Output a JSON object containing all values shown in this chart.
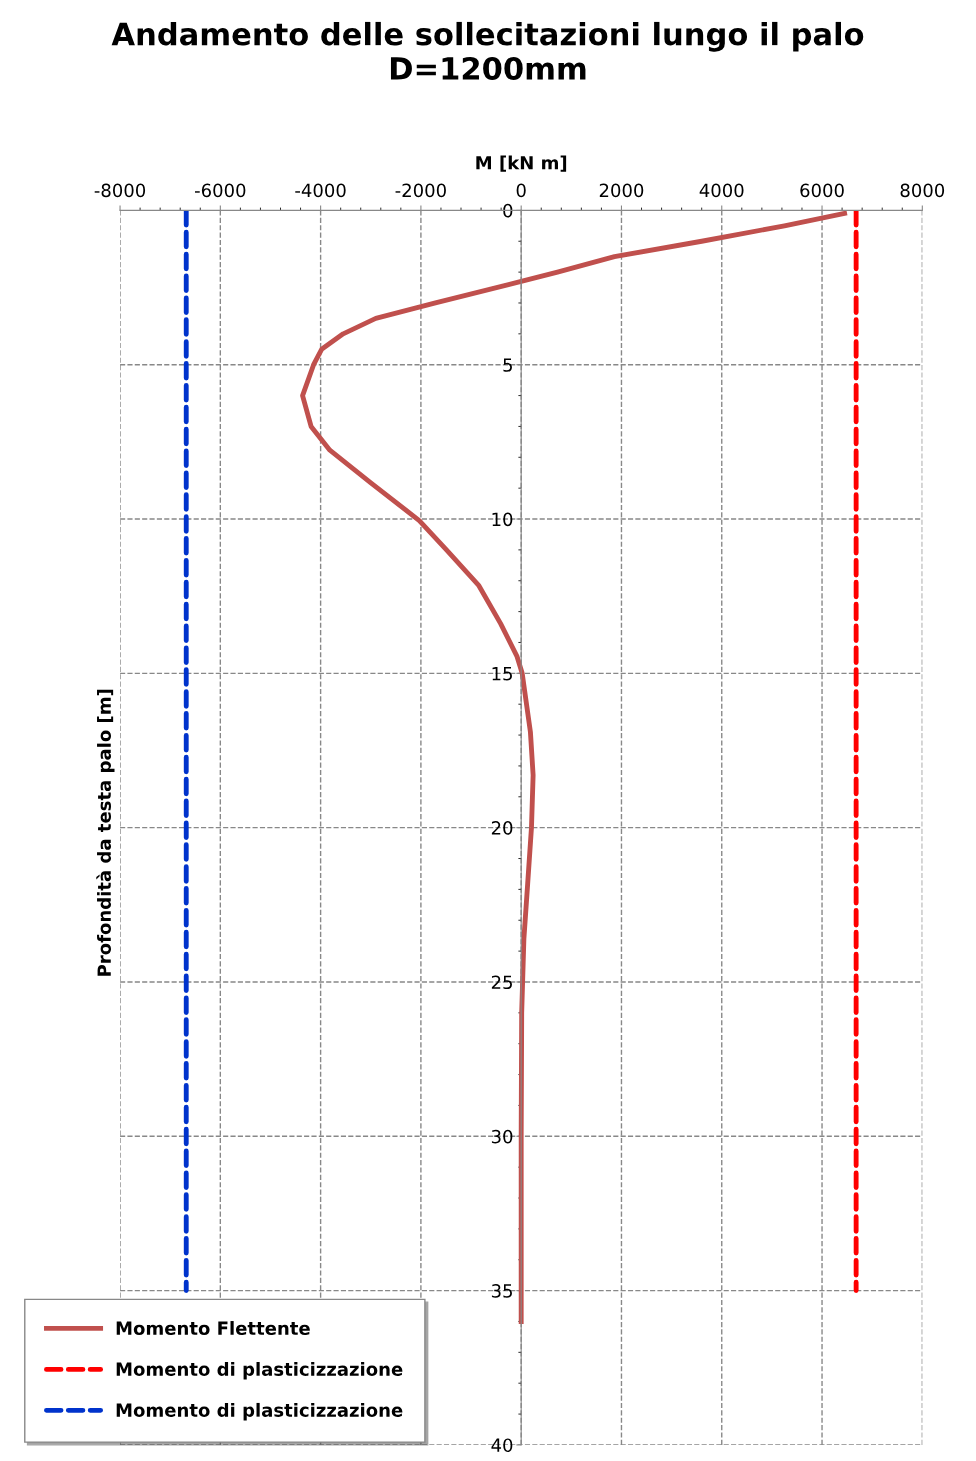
{
  "chart_data": {
    "type": "line",
    "title": "Andamento delle sollecitazioni lungo il palo\nD=1200mm",
    "xlabel": "M [kN m]",
    "ylabel": "Profondità da testa palo [m]",
    "xlim": [
      -8000,
      8000
    ],
    "xticks": [
      -8000,
      -6000,
      -4000,
      -2000,
      0,
      2000,
      4000,
      6000,
      8000
    ],
    "ylim": [
      40,
      0
    ],
    "yticks": [
      0,
      5,
      10,
      15,
      20,
      25,
      30,
      35,
      40
    ],
    "grid": true,
    "legend": "bottom left",
    "line_style": "solid",
    "series": [
      {
        "name": "Momento Flettente",
        "color": "#c0504d",
        "x": [
          6450,
          5250,
          3600,
          1860,
          724,
          0,
          -1710,
          -2900,
          -3550,
          -3980,
          -4140,
          -4360,
          -4190,
          -3816,
          -3005,
          -2032,
          -1490,
          -843,
          -410,
          -86,
          20,
          184,
          238,
          205,
          130,
          54,
          10,
          0,
          0
        ],
        "values": [
          0.1,
          0.5,
          1,
          1.5,
          2,
          2.3,
          3,
          3.5,
          4,
          4.5,
          5,
          6,
          7,
          7.77,
          8.82,
          10.05,
          11,
          12.16,
          13.39,
          14.44,
          15,
          16.9,
          18.3,
          20,
          21.8,
          23.6,
          26,
          30,
          36
        ]
      },
      {
        "name": "Momento di plasticizzazione",
        "color": "#ff0000",
        "line_style": "dashed",
        "x": [
          6680,
          6680
        ],
        "values": [
          0,
          35
        ]
      },
      {
        "name": "Momento di plasticizzazione",
        "color": "#0033cc",
        "line_style": "dashed",
        "x": [
          -6680,
          -6680
        ],
        "values": [
          0,
          35
        ]
      }
    ]
  }
}
